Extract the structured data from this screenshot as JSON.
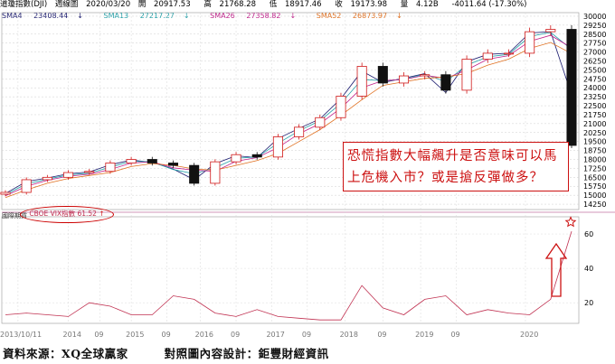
{
  "header": {
    "instrument": "道瓊指數(DJI)",
    "period": "週線圖",
    "date": "2020/03/20",
    "open_label": "開",
    "open": "20917.53",
    "high_label": "高",
    "high": "21768.28",
    "low_label": "低",
    "low": "18917.46",
    "close_label": "收",
    "close": "19173.98",
    "volume_label": "量",
    "volume": "4.12B",
    "change": "-4011.64 (-17.30%)"
  },
  "legend": [
    {
      "label": "SMA4",
      "value": "23408.44",
      "dir": "down",
      "color": "#1a1a6e"
    },
    {
      "label": "SMA13",
      "value": "27217.27",
      "dir": "down",
      "color": "#22a0a8"
    },
    {
      "label": "SMA26",
      "value": "27358.82",
      "dir": "down",
      "color": "#c0208a"
    },
    {
      "label": "SMA52",
      "value": "26873.97",
      "dir": "down",
      "color": "#e07020"
    }
  ],
  "sub_panel": {
    "title": "國際期貨",
    "indicator_label": "CBOE VIX指數",
    "indicator_value": "61.52",
    "indicator_dir": "up"
  },
  "callout": {
    "line1": "恐慌指數大幅飆升是否意味可以馬",
    "line2": "上危機入市？或是搶反彈做多？"
  },
  "footer": {
    "source": "資料來源：XQ全球贏家",
    "design": "對照圖內容設計：鉅豐財經資訊"
  },
  "colors": {
    "up": "#d01818",
    "down": "#111111",
    "vix": "#c03050",
    "accent": "#cc1111"
  },
  "chart_data": [
    {
      "type": "candlestick",
      "title": "道瓊指數(DJI) 週線圖",
      "x_tick_labels": [
        "2013/10/11",
        "2014",
        "09",
        "2015",
        "09",
        "2016",
        "09",
        "2017",
        "09",
        "2018",
        "09",
        "2019",
        "09",
        "2020"
      ],
      "y_tick_labels": [
        "14250",
        "15000",
        "15750",
        "16500",
        "17250",
        "18000",
        "18750",
        "19500",
        "20250",
        "21000",
        "21750",
        "22500",
        "23250",
        "24000",
        "24750",
        "25500",
        "26250",
        "27000",
        "27750",
        "28500",
        "29250",
        "30000"
      ],
      "ylim": [
        13800,
        30300
      ],
      "x": [
        "2013-10",
        "2014-01",
        "2014-04",
        "2014-07",
        "2014-10",
        "2015-01",
        "2015-04",
        "2015-07",
        "2015-10",
        "2016-01",
        "2016-04",
        "2016-07",
        "2016-10",
        "2017-01",
        "2017-04",
        "2017-07",
        "2017-10",
        "2018-01",
        "2018-04",
        "2018-07",
        "2018-10",
        "2019-01",
        "2019-04",
        "2019-07",
        "2019-10",
        "2020-01",
        "2020-02",
        "2020-03"
      ],
      "series": [
        {
          "name": "道瓊指數(DJI)",
          "values": [
            15237,
            16300,
            16500,
            16900,
            17000,
            17700,
            18000,
            17700,
            17500,
            16000,
            17800,
            18400,
            18200,
            19900,
            20700,
            21500,
            23300,
            25800,
            24400,
            25000,
            25100,
            23800,
            26400,
            26900,
            26900,
            28700,
            28900,
            19174
          ]
        },
        {
          "name": "SMA4",
          "values": [
            15150,
            16150,
            16450,
            16800,
            16950,
            17550,
            17950,
            17750,
            17200,
            16300,
            17650,
            18300,
            18150,
            19750,
            20600,
            21400,
            23100,
            25400,
            24450,
            24800,
            25200,
            23600,
            26200,
            26800,
            26900,
            28600,
            28700,
            23408
          ]
        },
        {
          "name": "SMA13",
          "values": [
            15050,
            15950,
            16350,
            16700,
            16850,
            17350,
            17850,
            17800,
            17150,
            16800,
            17300,
            18100,
            18200,
            19350,
            20400,
            21250,
            22700,
            24700,
            24600,
            24700,
            25150,
            24500,
            25900,
            26600,
            26800,
            28300,
            28650,
            27217
          ]
        },
        {
          "name": "SMA26",
          "values": [
            14950,
            15750,
            16250,
            16600,
            16750,
            17150,
            17700,
            17800,
            17300,
            17100,
            17000,
            17850,
            18150,
            19000,
            20150,
            21000,
            22300,
            24000,
            24600,
            24700,
            25050,
            24800,
            25500,
            26400,
            26700,
            27900,
            28400,
            27359
          ]
        },
        {
          "name": "SMA52",
          "values": [
            14800,
            15450,
            16000,
            16400,
            16650,
            16900,
            17400,
            17650,
            17500,
            17200,
            17100,
            17500,
            17900,
            18500,
            19500,
            20500,
            21700,
            23000,
            24200,
            24500,
            24800,
            24900,
            25200,
            25900,
            26400,
            27300,
            27800,
            26874
          ]
        }
      ]
    },
    {
      "type": "line",
      "title": "CBOE VIX指數",
      "y_tick_labels": [
        "20",
        "40",
        "60"
      ],
      "ylim": [
        8,
        70
      ],
      "x": [
        "2013-10",
        "2014-01",
        "2014-04",
        "2014-07",
        "2014-10",
        "2015-01",
        "2015-04",
        "2015-07",
        "2015-10",
        "2016-01",
        "2016-04",
        "2016-07",
        "2016-10",
        "2017-01",
        "2017-04",
        "2017-07",
        "2017-10",
        "2018-01",
        "2018-04",
        "2018-07",
        "2018-10",
        "2019-01",
        "2019-04",
        "2019-07",
        "2019-10",
        "2020-01",
        "2020-02",
        "2020-03"
      ],
      "series": [
        {
          "name": "CBOE VIX指數",
          "values": [
            13,
            14,
            13,
            12,
            20,
            18,
            13,
            13,
            24,
            22,
            14,
            12,
            16,
            12,
            11,
            10,
            10,
            30,
            17,
            13,
            22,
            24,
            13,
            16,
            14,
            13,
            22,
            61.52
          ]
        }
      ]
    }
  ]
}
